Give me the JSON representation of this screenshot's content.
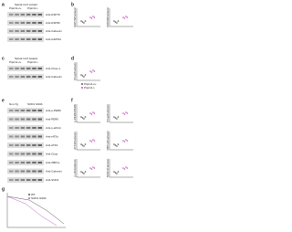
{
  "panels": [
    {
      "letter": "a",
      "title": "Spinal cord extract",
      "lanes": [
        "Ptpn11+/+",
        "Ptpn11-/-"
      ],
      "blots": [
        "Anti-HSP70",
        "Anti-HSP90",
        "Anti-Calnexin",
        "Anti-GAPDH"
      ]
    },
    {
      "letter": "b",
      "axes": [
        "HSP70/Calnexin",
        "HSP90/Calnexin"
      ]
    },
    {
      "letter": "c",
      "title": "Spinal cord lysates",
      "lanes": [
        "Ptpn11+/+",
        "Ptpn11-/-"
      ],
      "blots": [
        "Anti-Chop-1",
        "Anti-Calnexin"
      ]
    },
    {
      "letter": "d",
      "axes": [
        "Chop/Calnexin"
      ],
      "legend": [
        "Ptpn11+/+",
        "Ptpn11-/-"
      ]
    },
    {
      "letter": "e",
      "lanes": [
        "Non-Tg",
        "SOD1 G93A"
      ],
      "blots": [
        "Anti-p-PERK",
        "Anti-PERK",
        "Anti-p-eIF2α",
        "Anti-eIF2α",
        "Anti-ATF4",
        "Anti-Chop",
        "Anti-XBP1s",
        "Anti-Calnexin",
        "Anti-SOD1"
      ]
    },
    {
      "letter": "f",
      "axes": [
        "p-PERK/PERK",
        "Chop/Calnexin",
        "ATF4/Calnexin",
        "XBP1s/Calnexin",
        "p-eIF2α/eIF2α",
        "SOD1/Calnexin"
      ]
    },
    {
      "letter": "g",
      "legend": [
        "WT",
        "SOD1 G93A"
      ]
    }
  ]
}
